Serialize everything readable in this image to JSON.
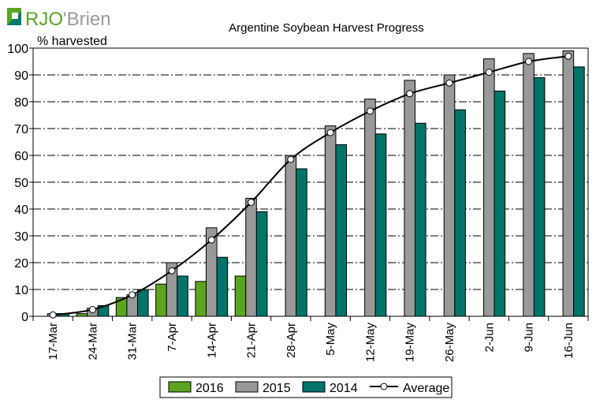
{
  "logo": {
    "text": "RJO'Brien",
    "colors": [
      "#5aa51f",
      "#007a6a",
      "#9a9a9a"
    ]
  },
  "chart_data": {
    "type": "bar",
    "title": "Argentine Soybean Harvest Progress",
    "ylabel": "% harvested",
    "xlabel": "",
    "ylim": [
      0,
      100
    ],
    "yticks": [
      0,
      10,
      20,
      30,
      40,
      50,
      60,
      70,
      80,
      90,
      100
    ],
    "grid": true,
    "legend": "bottom",
    "categories": [
      "17-Mar",
      "24-Mar",
      "31-Mar",
      "7-Apr",
      "14-Apr",
      "21-Apr",
      "28-Apr",
      "5-May",
      "12-May",
      "19-May",
      "26-May",
      "2-Jun",
      "9-Jun",
      "16-Jun"
    ],
    "series": [
      {
        "name": "2016",
        "kind": "bar",
        "color": "#5aa51f",
        "values": [
          0,
          1,
          7,
          12,
          13,
          15,
          null,
          null,
          null,
          null,
          null,
          null,
          null,
          null
        ]
      },
      {
        "name": "2015",
        "kind": "bar",
        "color": "#999999",
        "values": [
          1,
          3,
          8,
          20,
          33,
          44,
          60,
          71,
          81,
          88,
          90,
          96,
          98,
          99
        ]
      },
      {
        "name": "2014",
        "kind": "bar",
        "color": "#007468",
        "values": [
          1,
          4,
          10,
          15,
          22,
          39,
          55,
          64,
          68,
          72,
          77,
          84,
          89,
          93
        ]
      },
      {
        "name": "Average",
        "kind": "line",
        "color": "#000000",
        "values": [
          0.5,
          2.5,
          8,
          17,
          28.5,
          42.5,
          58.5,
          68.5,
          76.5,
          83,
          87,
          91,
          95,
          97
        ]
      }
    ]
  }
}
